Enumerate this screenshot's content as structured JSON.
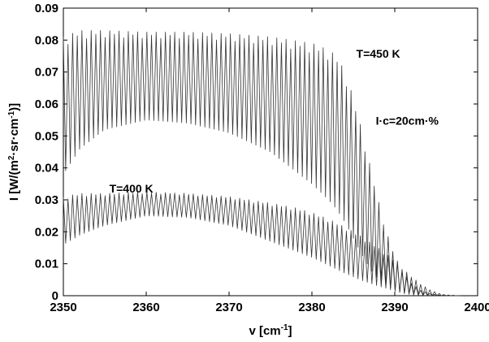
{
  "chart_data": {
    "type": "line",
    "title": "",
    "xlabel_main": "v [cm",
    "xlabel_sup": "-1",
    "xlabel_end": "]",
    "ylabel_parts": [
      {
        "t": "I [W/(m",
        "sup": false
      },
      {
        "t": "2",
        "sup": true
      },
      {
        "t": "·sr·cm",
        "sup": false
      },
      {
        "t": "-1",
        "sup": true
      },
      {
        "t": ")]",
        "sup": false
      }
    ],
    "xlim": [
      2350,
      2400
    ],
    "ylim": [
      0,
      0.09
    ],
    "xticks": [
      2350,
      2360,
      2370,
      2380,
      2390,
      2400
    ],
    "xtick_labels": [
      "2350",
      "2360",
      "2370",
      "2380",
      "2390",
      "2400"
    ],
    "yticks": [
      0,
      0.01,
      0.02,
      0.03,
      0.04,
      0.05,
      0.06,
      0.07,
      0.08,
      0.09
    ],
    "ytick_labels": [
      "0",
      "0.01",
      "0.02",
      "0.03",
      "0.04",
      "0.05",
      "0.06",
      "0.07",
      "0.08",
      "0.09"
    ],
    "grid": false,
    "line_color": "#333333",
    "series": [
      {
        "curve": "T=450 K",
        "line_spacing": 0.56,
        "x_start": 2350,
        "x_end": 2398,
        "env_x": [
          2350,
          2352,
          2355,
          2360,
          2365,
          2370,
          2375,
          2380,
          2382,
          2383,
          2384,
          2385,
          2386,
          2387,
          2388,
          2389,
          2390,
          2391,
          2392,
          2393,
          2394,
          2395,
          2396,
          2398
        ],
        "env_peak": [
          0.081,
          0.083,
          0.083,
          0.0825,
          0.0825,
          0.082,
          0.081,
          0.079,
          0.077,
          0.075,
          0.07,
          0.062,
          0.052,
          0.041,
          0.03,
          0.02,
          0.0125,
          0.0075,
          0.004,
          0.002,
          0.0009,
          0.0003,
          0.0001,
          0
        ],
        "env_valley": [
          0.038,
          0.046,
          0.052,
          0.055,
          0.054,
          0.051,
          0.045,
          0.035,
          0.03,
          0.027,
          0.023,
          0.018,
          0.013,
          0.0085,
          0.005,
          0.003,
          0.0015,
          0.0007,
          0.0003,
          0.0001,
          0,
          0,
          0,
          0
        ]
      },
      {
        "curve": "T=400 K",
        "line_spacing": 0.56,
        "x_start": 2350,
        "x_end": 2398,
        "env_x": [
          2350,
          2352,
          2355,
          2360,
          2365,
          2370,
          2375,
          2378,
          2380,
          2382,
          2384,
          2386,
          2388,
          2390,
          2391,
          2392,
          2393,
          2394,
          2395,
          2396,
          2398
        ],
        "env_peak": [
          0.031,
          0.032,
          0.032,
          0.0325,
          0.032,
          0.031,
          0.029,
          0.0275,
          0.026,
          0.024,
          0.0215,
          0.0185,
          0.015,
          0.011,
          0.0085,
          0.006,
          0.004,
          0.0022,
          0.001,
          0.0003,
          0
        ],
        "env_valley": [
          0.016,
          0.019,
          0.022,
          0.025,
          0.0245,
          0.022,
          0.017,
          0.014,
          0.012,
          0.0095,
          0.007,
          0.0048,
          0.003,
          0.0015,
          0.0009,
          0.0004,
          0.0002,
          0.0001,
          0,
          0,
          0
        ]
      }
    ],
    "annotations": [
      {
        "text": "T=450 K",
        "x": 2388,
        "y": 0.0745
      },
      {
        "text": "T=400 K",
        "x": 2358.2,
        "y": 0.0323
      },
      {
        "text": "I·c=20cm·%",
        "x": 2391.5,
        "y": 0.0535
      }
    ]
  }
}
